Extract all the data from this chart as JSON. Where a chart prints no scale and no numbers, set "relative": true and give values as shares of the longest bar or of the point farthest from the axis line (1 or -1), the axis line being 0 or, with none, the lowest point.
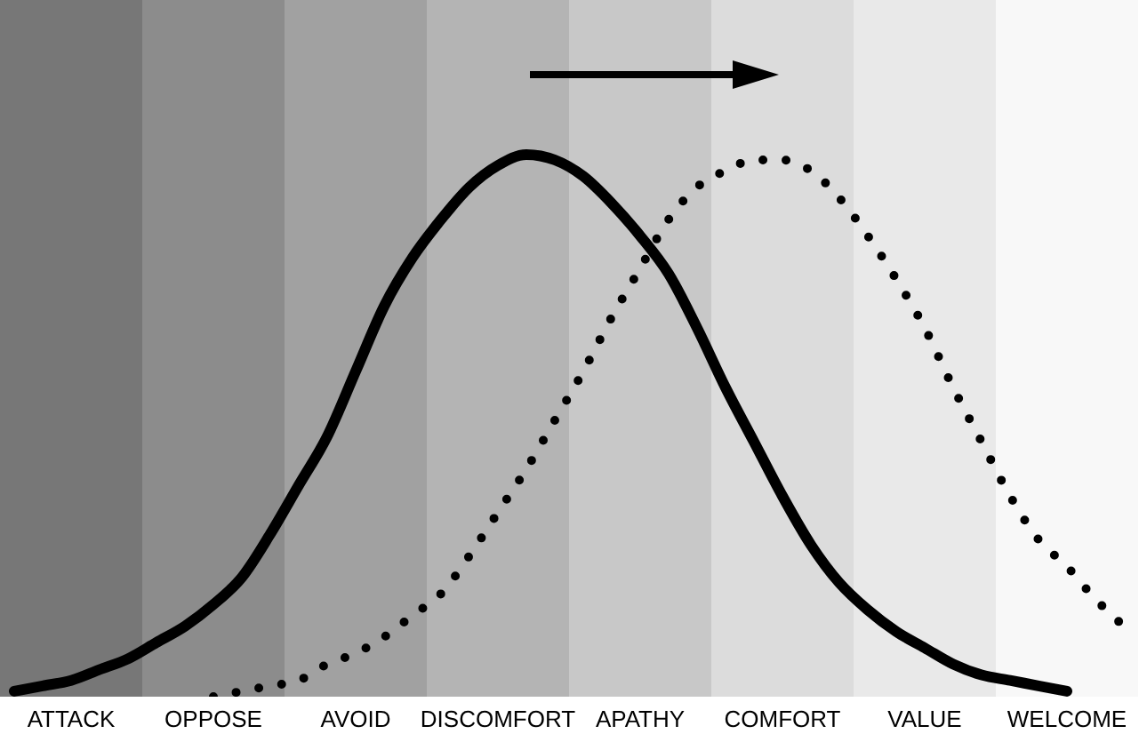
{
  "chart_data": {
    "type": "line",
    "relative": true,
    "categories": [
      null,
      null,
      "ATTACK",
      null,
      null,
      null,
      null,
      "OPPOSE",
      null,
      null,
      null,
      null,
      "AVOID",
      null,
      null,
      null,
      null,
      "DISCOMFORT",
      null,
      null,
      null,
      null,
      "APATHY",
      null,
      null,
      null,
      null,
      "COMFORT",
      null,
      null,
      null,
      null,
      "VALUE",
      null,
      null,
      null,
      null,
      "WELCOME",
      null,
      null
    ],
    "marker": "none",
    "series": [
      {
        "color": "#000000",
        "line_style": "solid",
        "values": [
          0.01,
          0.02,
          0.03,
          0.05,
          0.07,
          0.1,
          0.13,
          0.17,
          0.22,
          0.3,
          0.39,
          0.48,
          0.6,
          0.72,
          0.81,
          0.88,
          0.94,
          0.98,
          1,
          0.99,
          0.96,
          0.91,
          0.85,
          0.78,
          0.68,
          0.57,
          0.47,
          0.37,
          0.28,
          0.21,
          0.16,
          0.12,
          0.09,
          0.06,
          0.04,
          0.03,
          0.02,
          0.01,
          null,
          null
        ]
      },
      {
        "color": "#000000",
        "line_style": "dotted",
        "values": [
          null,
          null,
          null,
          null,
          null,
          null,
          null,
          0,
          0.01,
          0.02,
          0.03,
          0.06,
          0.08,
          0.11,
          0.15,
          0.19,
          0.26,
          0.34,
          0.42,
          0.51,
          0.6,
          0.7,
          0.79,
          0.88,
          0.94,
          0.97,
          0.99,
          0.99,
          0.97,
          0.92,
          0.85,
          0.77,
          0.68,
          0.57,
          0.47,
          0.37,
          0.29,
          0.24,
          0.18,
          0.13
        ]
      }
    ]
  }
}
